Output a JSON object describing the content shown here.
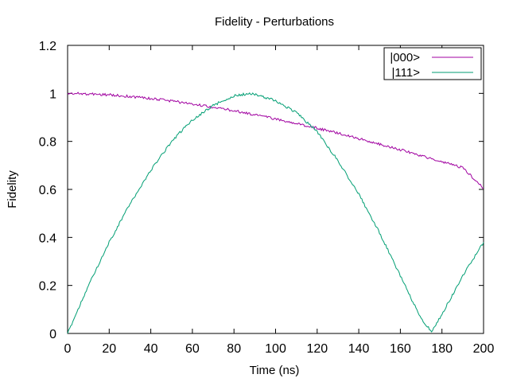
{
  "chart_data": {
    "type": "line",
    "title": "Fidelity - Perturbations",
    "xlabel": "Time (ns)",
    "ylabel": "Fidelity",
    "xlim": [
      0,
      200
    ],
    "ylim": [
      0,
      1.2
    ],
    "x_ticks": [
      0,
      20,
      40,
      60,
      80,
      100,
      120,
      140,
      160,
      180,
      200
    ],
    "y_ticks": [
      0,
      0.2,
      0.4,
      0.6,
      0.8,
      1,
      1.2
    ],
    "x_tick_labels": [
      "0",
      "20",
      "40",
      "60",
      "80",
      "100",
      "120",
      "140",
      "160",
      "180",
      "200"
    ],
    "y_tick_labels": [
      "0",
      "0.2",
      "0.4",
      "0.6",
      "0.8",
      "1",
      "1.2"
    ],
    "grid": false,
    "legend_position": "top-right",
    "series": [
      {
        "name": "|000>",
        "color": "#a000a0",
        "x": [
          0,
          10,
          20,
          30,
          40,
          50,
          60,
          70,
          80,
          90,
          100,
          110,
          120,
          130,
          140,
          150,
          160,
          170,
          180,
          190,
          200
        ],
        "y": [
          1.0,
          0.998,
          0.994,
          0.987,
          0.979,
          0.968,
          0.956,
          0.943,
          0.928,
          0.911,
          0.894,
          0.875,
          0.855,
          0.834,
          0.812,
          0.789,
          0.765,
          0.741,
          0.715,
          0.69,
          0.605
        ]
      },
      {
        "name": "|111>",
        "color": "#009e73",
        "x": [
          0,
          10,
          20,
          30,
          40,
          50,
          60,
          70,
          80,
          88,
          100,
          110,
          120,
          130,
          140,
          150,
          160,
          170,
          175,
          180,
          190,
          200
        ],
        "y": [
          0.0,
          0.2,
          0.38,
          0.54,
          0.68,
          0.8,
          0.89,
          0.95,
          0.99,
          1.0,
          0.97,
          0.92,
          0.84,
          0.72,
          0.58,
          0.42,
          0.24,
          0.06,
          0.01,
          0.08,
          0.24,
          0.38
        ]
      }
    ]
  }
}
